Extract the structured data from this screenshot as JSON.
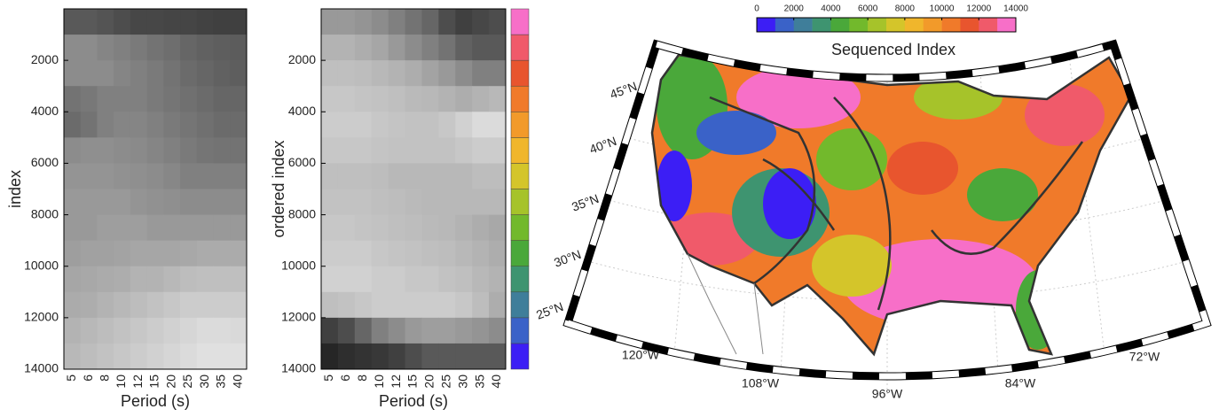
{
  "chart_data": [
    {
      "type": "heatmap",
      "ylabel": "index",
      "xlabel": "Period (s)",
      "categories": [
        "5",
        "6",
        "8",
        "10",
        "12",
        "15",
        "20",
        "25",
        "30",
        "35",
        "40"
      ],
      "ylim": [
        0,
        14000
      ],
      "yticks": [
        2000,
        4000,
        6000,
        8000,
        10000,
        12000,
        14000
      ],
      "values": [
        [
          0.35,
          0.35,
          0.33,
          0.3,
          0.28,
          0.28,
          0.27,
          0.27,
          0.26,
          0.25,
          0.25
        ],
        [
          0.55,
          0.55,
          0.52,
          0.5,
          0.48,
          0.45,
          0.43,
          0.4,
          0.38,
          0.37,
          0.36
        ],
        [
          0.55,
          0.55,
          0.55,
          0.52,
          0.5,
          0.48,
          0.45,
          0.42,
          0.4,
          0.38,
          0.37
        ],
        [
          0.45,
          0.47,
          0.5,
          0.5,
          0.5,
          0.48,
          0.46,
          0.44,
          0.42,
          0.4,
          0.4
        ],
        [
          0.42,
          0.45,
          0.5,
          0.52,
          0.52,
          0.5,
          0.48,
          0.46,
          0.44,
          0.42,
          0.42
        ],
        [
          0.55,
          0.56,
          0.56,
          0.55,
          0.54,
          0.52,
          0.5,
          0.48,
          0.46,
          0.45,
          0.45
        ],
        [
          0.58,
          0.58,
          0.58,
          0.57,
          0.56,
          0.55,
          0.53,
          0.5,
          0.5,
          0.5,
          0.5
        ],
        [
          0.6,
          0.6,
          0.6,
          0.6,
          0.58,
          0.57,
          0.56,
          0.55,
          0.55,
          0.55,
          0.55
        ],
        [
          0.6,
          0.6,
          0.62,
          0.62,
          0.62,
          0.6,
          0.6,
          0.6,
          0.6,
          0.6,
          0.6
        ],
        [
          0.62,
          0.63,
          0.63,
          0.64,
          0.65,
          0.65,
          0.65,
          0.66,
          0.67,
          0.67,
          0.67
        ],
        [
          0.65,
          0.66,
          0.67,
          0.68,
          0.7,
          0.7,
          0.72,
          0.74,
          0.75,
          0.75,
          0.75
        ],
        [
          0.67,
          0.68,
          0.7,
          0.72,
          0.74,
          0.76,
          0.78,
          0.8,
          0.8,
          0.8,
          0.8
        ],
        [
          0.7,
          0.72,
          0.74,
          0.76,
          0.78,
          0.8,
          0.82,
          0.84,
          0.86,
          0.86,
          0.85
        ],
        [
          0.72,
          0.74,
          0.76,
          0.78,
          0.8,
          0.82,
          0.84,
          0.86,
          0.88,
          0.88,
          0.88
        ]
      ]
    },
    {
      "type": "heatmap",
      "ylabel": "ordered index",
      "xlabel": "Period (s)",
      "colorbar": true,
      "categories": [
        "5",
        "6",
        "8",
        "10",
        "12",
        "15",
        "20",
        "25",
        "30",
        "35",
        "40"
      ],
      "ylim": [
        0,
        14000
      ],
      "yticks": [
        2000,
        4000,
        6000,
        8000,
        10000,
        12000,
        14000
      ],
      "values": [
        [
          0.6,
          0.6,
          0.58,
          0.55,
          0.5,
          0.45,
          0.4,
          0.3,
          0.25,
          0.28,
          0.3
        ],
        [
          0.7,
          0.7,
          0.68,
          0.65,
          0.6,
          0.55,
          0.5,
          0.45,
          0.38,
          0.35,
          0.35
        ],
        [
          0.75,
          0.75,
          0.74,
          0.72,
          0.7,
          0.68,
          0.64,
          0.6,
          0.55,
          0.5,
          0.5
        ],
        [
          0.78,
          0.78,
          0.77,
          0.76,
          0.75,
          0.73,
          0.72,
          0.7,
          0.68,
          0.7,
          0.72
        ],
        [
          0.8,
          0.8,
          0.8,
          0.78,
          0.77,
          0.76,
          0.76,
          0.78,
          0.82,
          0.86,
          0.86
        ],
        [
          0.78,
          0.78,
          0.78,
          0.77,
          0.76,
          0.76,
          0.76,
          0.76,
          0.78,
          0.8,
          0.8
        ],
        [
          0.75,
          0.75,
          0.75,
          0.74,
          0.72,
          0.72,
          0.72,
          0.72,
          0.72,
          0.74,
          0.74
        ],
        [
          0.76,
          0.76,
          0.76,
          0.75,
          0.74,
          0.73,
          0.72,
          0.72,
          0.72,
          0.72,
          0.72
        ],
        [
          0.78,
          0.78,
          0.77,
          0.76,
          0.75,
          0.74,
          0.73,
          0.72,
          0.7,
          0.68,
          0.66
        ],
        [
          0.8,
          0.8,
          0.8,
          0.78,
          0.77,
          0.76,
          0.75,
          0.74,
          0.72,
          0.7,
          0.68
        ],
        [
          0.82,
          0.82,
          0.82,
          0.8,
          0.8,
          0.78,
          0.78,
          0.76,
          0.75,
          0.72,
          0.7
        ],
        [
          0.75,
          0.76,
          0.78,
          0.8,
          0.8,
          0.8,
          0.8,
          0.8,
          0.78,
          0.74,
          0.68
        ],
        [
          0.25,
          0.3,
          0.4,
          0.5,
          0.55,
          0.6,
          0.62,
          0.62,
          0.6,
          0.58,
          0.55
        ],
        [
          0.15,
          0.18,
          0.2,
          0.22,
          0.25,
          0.3,
          0.35,
          0.35,
          0.35,
          0.35,
          0.35
        ]
      ]
    },
    {
      "type": "map",
      "title": "Sequenced Index",
      "colorbar": {
        "lim": [
          0,
          14000
        ],
        "ticks": [
          0,
          2000,
          4000,
          6000,
          8000,
          10000,
          12000,
          14000
        ],
        "colors": [
          "#3c1ef5",
          "#3a62c8",
          "#3f7e9a",
          "#3e9470",
          "#4aa83a",
          "#72b92c",
          "#a6c32a",
          "#d4c52a",
          "#f0b62c",
          "#f29a2a",
          "#f07a2a",
          "#e8552e",
          "#f05a6a",
          "#f76fc8"
        ]
      },
      "lat_labels": [
        "45°N",
        "40°N",
        "35°N",
        "30°N",
        "25°N"
      ],
      "lon_labels": [
        "120°W",
        "108°W",
        "96°W",
        "84°W",
        "72°W"
      ]
    }
  ]
}
